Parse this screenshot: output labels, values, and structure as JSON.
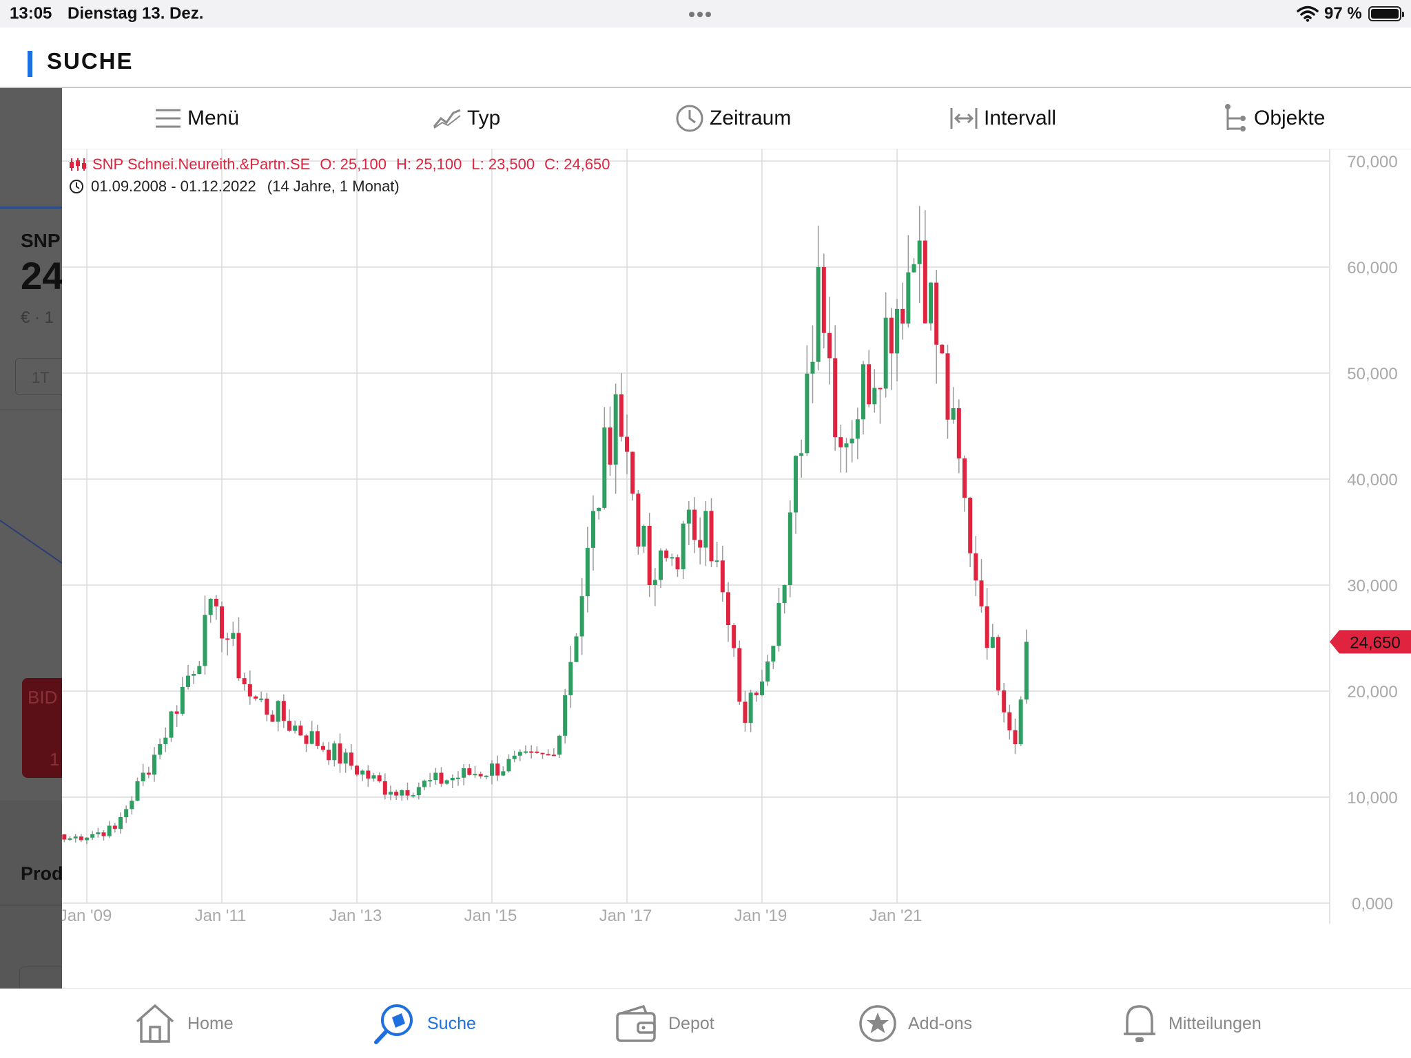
{
  "status_bar": {
    "time": "13:05",
    "date": "Dienstag 13. Dez.",
    "battery": "97 %"
  },
  "header": {
    "title": "SUCHE"
  },
  "background_app": {
    "name": "SNP",
    "price": "24",
    "sub": "€ · 1",
    "period_button": "1T",
    "bid_label": "BID",
    "bid_value": "1",
    "section": "Prod"
  },
  "toolbar": [
    {
      "label": "Menü",
      "icon": "menu-icon"
    },
    {
      "label": "Typ",
      "icon": "chart-type-icon"
    },
    {
      "label": "Zeitraum",
      "icon": "clock-icon"
    },
    {
      "label": "Intervall",
      "icon": "interval-icon"
    },
    {
      "label": "Objekte",
      "icon": "objects-icon"
    }
  ],
  "chart_legend": {
    "instrument": "SNP Schnei.Neureith.&Partn.SE",
    "open": "O: 25,100",
    "high": "H: 25,100",
    "low": "L: 23,500",
    "close": "C: 24,650",
    "range": "01.09.2008 - 01.12.2022",
    "duration": "(14 Jahre, 1 Monat)"
  },
  "chart_data": {
    "type": "candlestick",
    "ylim": [
      0,
      75
    ],
    "y_ticks": [
      "0,000",
      "10,000",
      "20,000",
      "30,000",
      "40,000",
      "50,000",
      "60,000",
      "70,000"
    ],
    "x_ticks": [
      "Jan '09",
      "Jan '11",
      "Jan '13",
      "Jan '15",
      "Jan '17",
      "Jan '19",
      "Jan '21"
    ],
    "last_price": "24,650",
    "up_color": "#2e9e62",
    "down_color": "#e0243f",
    "key_closes": [
      {
        "date": "2008-09",
        "value": 6.0
      },
      {
        "date": "2009-06",
        "value": 7.0
      },
      {
        "date": "2010-02",
        "value": 15.0
      },
      {
        "date": "2010-12",
        "value": 28.0
      },
      {
        "date": "2011-06",
        "value": 19.5
      },
      {
        "date": "2013-07",
        "value": 10.5
      },
      {
        "date": "2015-12",
        "value": 14.0
      },
      {
        "date": "2016-11",
        "value": 48.0
      },
      {
        "date": "2017-05",
        "value": 30.0
      },
      {
        "date": "2018-03",
        "value": 37.0
      },
      {
        "date": "2018-10",
        "value": 17.0
      },
      {
        "date": "2019-05",
        "value": 30.0
      },
      {
        "date": "2019-11",
        "value": 60.0
      },
      {
        "date": "2020-03",
        "value": 43.0
      },
      {
        "date": "2021-05",
        "value": 62.5
      },
      {
        "date": "2022-04",
        "value": 28.0
      },
      {
        "date": "2022-10",
        "value": 15.0
      },
      {
        "date": "2022-12",
        "value": 24.65
      }
    ]
  },
  "bottom_nav": [
    {
      "label": "Home",
      "icon": "home-icon",
      "active": false
    },
    {
      "label": "Suche",
      "icon": "search-icon",
      "active": true
    },
    {
      "label": "Depot",
      "icon": "wallet-icon",
      "active": false
    },
    {
      "label": "Add-ons",
      "icon": "star-icon",
      "active": false
    },
    {
      "label": "Mitteilungen",
      "icon": "bell-icon",
      "active": false
    }
  ]
}
